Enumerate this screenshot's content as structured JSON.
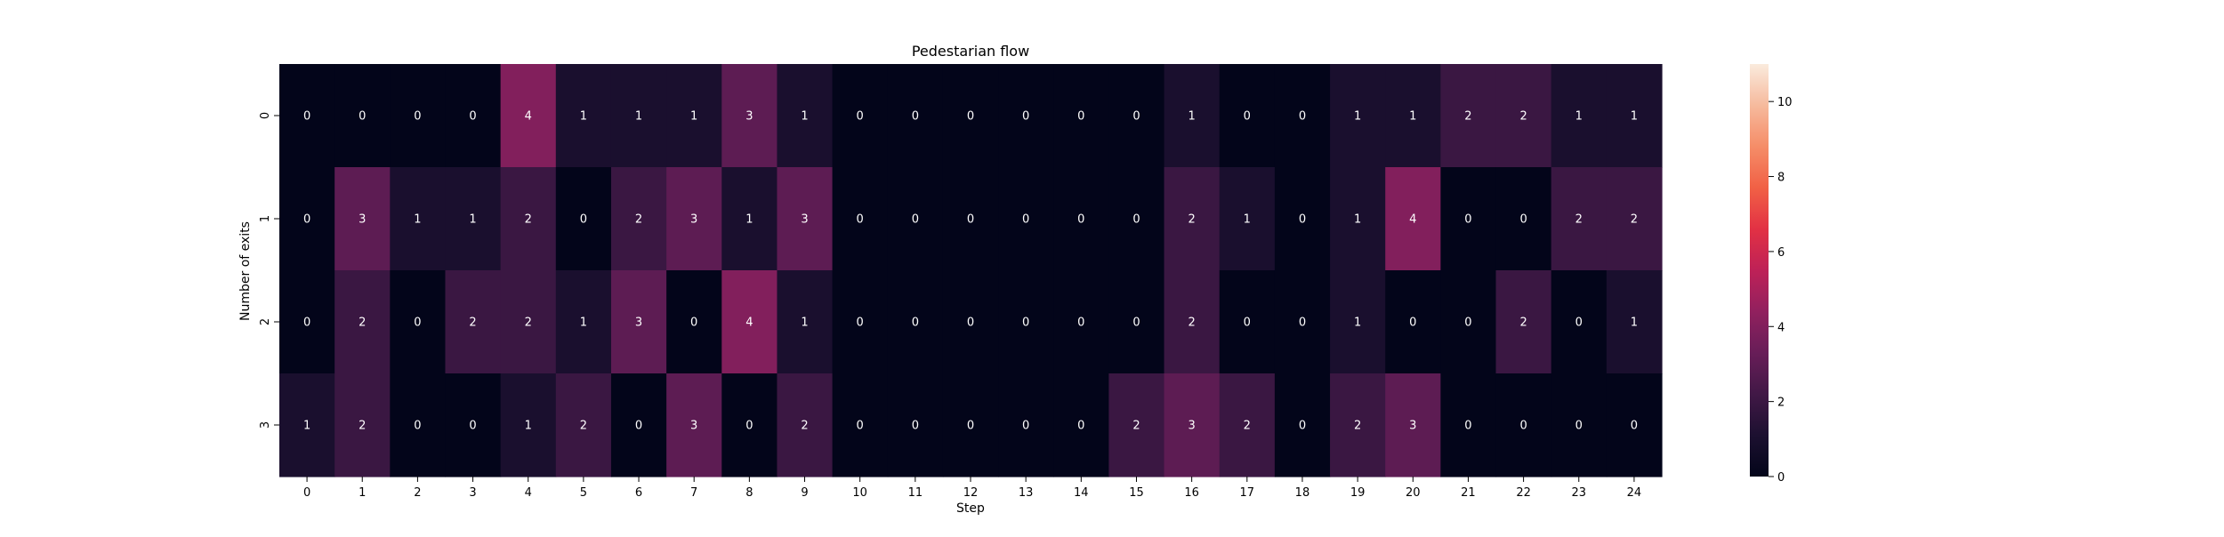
{
  "chart_data": {
    "type": "heatmap",
    "title": "Pedestarian flow",
    "xlabel": "Step",
    "ylabel": "Number of exits",
    "x_categories": [
      "0",
      "1",
      "2",
      "3",
      "4",
      "5",
      "6",
      "7",
      "8",
      "9",
      "10",
      "11",
      "12",
      "13",
      "14",
      "15",
      "16",
      "17",
      "18",
      "19",
      "20",
      "21",
      "22",
      "23",
      "24"
    ],
    "y_categories": [
      "0",
      "1",
      "2",
      "3"
    ],
    "values": [
      [
        0,
        0,
        0,
        0,
        4,
        1,
        1,
        1,
        3,
        1,
        0,
        0,
        0,
        0,
        0,
        0,
        1,
        0,
        0,
        1,
        1,
        2,
        2,
        1,
        1
      ],
      [
        0,
        3,
        1,
        1,
        2,
        0,
        2,
        3,
        1,
        3,
        0,
        0,
        0,
        0,
        0,
        0,
        2,
        1,
        0,
        1,
        4,
        0,
        0,
        2,
        2
      ],
      [
        0,
        2,
        0,
        2,
        2,
        1,
        3,
        0,
        4,
        1,
        0,
        0,
        0,
        0,
        0,
        0,
        2,
        0,
        0,
        1,
        0,
        0,
        2,
        0,
        1
      ],
      [
        1,
        2,
        0,
        0,
        1,
        2,
        0,
        3,
        0,
        2,
        0,
        0,
        0,
        0,
        0,
        2,
        3,
        2,
        0,
        2,
        3,
        0,
        0,
        0,
        0
      ]
    ],
    "colorbar": {
      "min": 0,
      "max": 11,
      "ticks": [
        "0",
        "2",
        "4",
        "6",
        "8",
        "10"
      ]
    },
    "colormap": "rocket",
    "grid": false
  }
}
